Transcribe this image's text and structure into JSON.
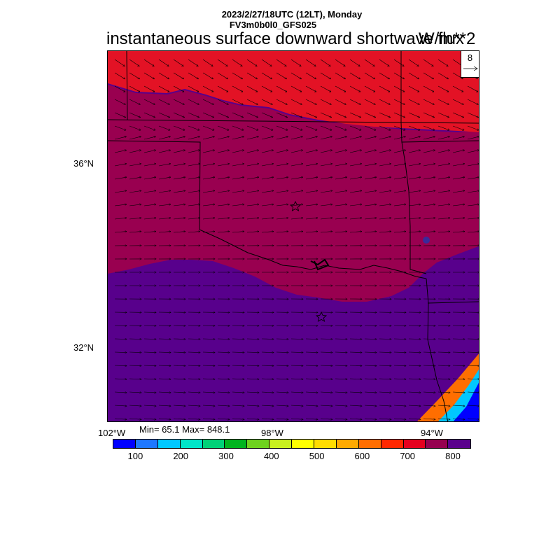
{
  "header": {
    "datetime": "2023/2/27/18UTC (12LT), Monday",
    "model": "FV3m0b0l0_GFS025",
    "field_title": "instantaneous surface downward shortwave flux",
    "units": "W/m**2"
  },
  "map": {
    "lat_labels": [
      "36°N",
      "32°N"
    ],
    "lon_labels": [
      "102°W",
      "98°W",
      "94°W"
    ],
    "reference_vector": {
      "magnitude": "8",
      "icon": "arrow-right-icon"
    },
    "stats": "Min= 65.1 Max= 848.1",
    "colors": {
      "band_700_750": "#e31225",
      "band_750_800": "#990050",
      "band_800_plus": "#58008c"
    },
    "markers": [
      "star-icon",
      "star-icon"
    ]
  },
  "colorbar": {
    "colors": [
      "#0000ff",
      "#1e78ff",
      "#00c8ff",
      "#00e6c8",
      "#00d278",
      "#00b41e",
      "#6ed21e",
      "#c8f01e",
      "#ffff00",
      "#ffdc00",
      "#ffaa00",
      "#ff6e00",
      "#ff2800",
      "#e6001e",
      "#960050",
      "#5a008c"
    ],
    "tick_labels": [
      "100",
      "200",
      "300",
      "400",
      "500",
      "600",
      "700",
      "800"
    ]
  }
}
